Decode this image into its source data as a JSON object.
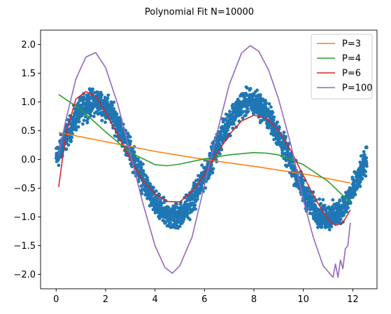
{
  "chart_data": {
    "type": "scatter",
    "title": "Polynomial Fit N=10000",
    "xlabel": "",
    "ylabel": "",
    "xlim": [
      -0.63,
      12.98
    ],
    "ylim": [
      -2.25,
      2.25
    ],
    "x_ticks": [
      0,
      2,
      4,
      6,
      8,
      10,
      12
    ],
    "y_ticks": [
      -2.0,
      -1.5,
      -1.0,
      -0.5,
      0.0,
      0.5,
      1.0,
      1.5,
      2.0
    ],
    "x_tick_labels": [
      "0",
      "2",
      "4",
      "6",
      "8",
      "10",
      "12"
    ],
    "y_tick_labels": [
      "−2.0",
      "−1.5",
      "−1.0",
      "−0.5",
      "0.0",
      "0.5",
      "1.0",
      "1.5",
      "2.0"
    ],
    "grid": false,
    "legend_position": "top-right",
    "scatter": {
      "name": "",
      "color": "#1f77b4",
      "x_range": [
        0.0,
        12.57
      ],
      "function": "sin(x)",
      "noise_band": 0.3,
      "n_points": 10000
    },
    "series": [
      {
        "name": "P=3",
        "color": "#ff7f0e",
        "x": [
          0.1,
          2,
          4,
          6,
          8,
          10,
          11.9
        ],
        "y": [
          0.47,
          0.31,
          0.14,
          0.0,
          -0.12,
          -0.25,
          -0.41
        ]
      },
      {
        "name": "P=4",
        "color": "#2ca02c",
        "x": [
          0.1,
          1,
          2,
          3,
          4,
          4.5,
          5,
          6,
          7,
          8,
          8.5,
          9,
          10,
          11,
          11.9
        ],
        "y": [
          1.13,
          0.87,
          0.48,
          0.12,
          -0.09,
          -0.11,
          -0.08,
          0.01,
          0.08,
          0.12,
          0.11,
          0.08,
          -0.09,
          -0.38,
          -0.75
        ]
      },
      {
        "name": "P=6",
        "color": "#d62728",
        "x": [
          0.1,
          0.4,
          0.8,
          1.2,
          1.6,
          2,
          2.5,
          3,
          3.5,
          4,
          4.5,
          5,
          5.5,
          6,
          6.5,
          7,
          7.5,
          8,
          8.5,
          9,
          9.5,
          10,
          10.5,
          11,
          11.3,
          11.6,
          11.9
        ],
        "y": [
          -0.48,
          0.45,
          1.05,
          1.18,
          1.1,
          0.82,
          0.42,
          0.0,
          -0.36,
          -0.6,
          -0.73,
          -0.74,
          -0.56,
          -0.25,
          0.1,
          0.43,
          0.67,
          0.77,
          0.72,
          0.5,
          0.15,
          -0.28,
          -0.7,
          -1.05,
          -1.15,
          -1.1,
          -0.88
        ]
      },
      {
        "name": "P=100",
        "color": "#9467bd",
        "x": [
          0.1,
          0.4,
          0.8,
          1.2,
          1.6,
          2,
          2.5,
          3,
          3.5,
          4,
          4.4,
          4.7,
          5,
          5.5,
          6,
          6.5,
          7,
          7.5,
          7.85,
          8.2,
          8.6,
          9,
          9.5,
          10,
          10.4,
          10.8,
          11.0,
          11.2,
          11.3,
          11.4,
          11.5,
          11.6,
          11.7,
          11.8,
          11.9
        ],
        "y": [
          0.08,
          0.7,
          1.4,
          1.78,
          1.86,
          1.6,
          0.95,
          0.1,
          -0.75,
          -1.5,
          -1.88,
          -1.98,
          -1.85,
          -1.35,
          -0.45,
          0.45,
          1.3,
          1.85,
          1.98,
          1.88,
          1.55,
          1.05,
          0.25,
          -0.7,
          -1.35,
          -1.85,
          -1.95,
          -2.05,
          -1.82,
          -2.05,
          -1.75,
          -1.9,
          -1.55,
          -1.5,
          -1.1
        ]
      }
    ]
  }
}
